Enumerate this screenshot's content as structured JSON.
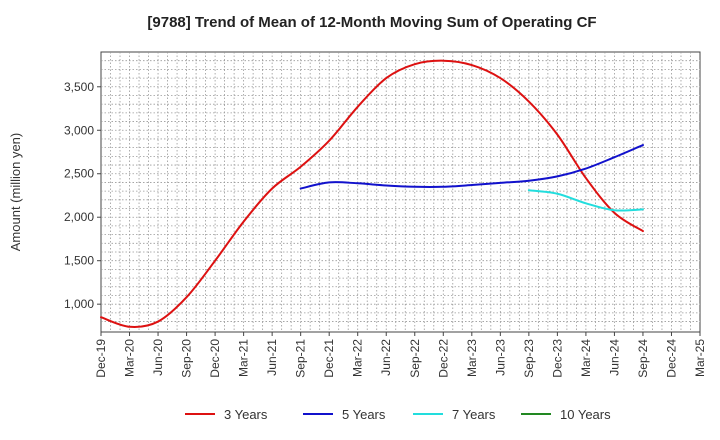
{
  "chart_data": {
    "type": "line",
    "title": "[9788]  Trend of Mean of 12-Month Moving Sum of Operating CF",
    "xlabel": "",
    "ylabel": "Amount (million yen)",
    "ylim": [
      680,
      3900
    ],
    "yticks": [
      1000,
      1500,
      2000,
      2500,
      3000,
      3500
    ],
    "ytick_labels": [
      "1,000",
      "1,500",
      "2,000",
      "2,500",
      "3,000",
      "3,500"
    ],
    "x_categories": [
      "Dec-19",
      "Mar-20",
      "Jun-20",
      "Sep-20",
      "Dec-20",
      "Mar-21",
      "Jun-21",
      "Sep-21",
      "Dec-21",
      "Mar-22",
      "Jun-22",
      "Sep-22",
      "Dec-22",
      "Mar-23",
      "Jun-23",
      "Sep-23",
      "Dec-23",
      "Mar-24",
      "Jun-24",
      "Sep-24",
      "Dec-24",
      "Mar-25"
    ],
    "grid": true,
    "legend_position": "bottom",
    "series": [
      {
        "name": "3 Years",
        "color": "#dd1111",
        "values": [
          850,
          740,
          800,
          1080,
          1500,
          1950,
          2330,
          2580,
          2880,
          3270,
          3600,
          3760,
          3800,
          3750,
          3600,
          3330,
          2950,
          2450,
          2050,
          1840,
          null,
          null
        ]
      },
      {
        "name": "5 Years",
        "color": "#1111cc",
        "values": [
          null,
          null,
          null,
          null,
          null,
          null,
          null,
          2330,
          2400,
          2390,
          2365,
          2350,
          2350,
          2370,
          2395,
          2420,
          2470,
          2560,
          2690,
          2830,
          null,
          null
        ]
      },
      {
        "name": "7 Years",
        "color": "#22dddd",
        "values": [
          null,
          null,
          null,
          null,
          null,
          null,
          null,
          null,
          null,
          null,
          null,
          null,
          null,
          null,
          null,
          2310,
          2270,
          2160,
          2080,
          2090,
          null,
          null
        ]
      },
      {
        "name": "10 Years",
        "color": "#228822",
        "values": [
          null,
          null,
          null,
          null,
          null,
          null,
          null,
          null,
          null,
          null,
          null,
          null,
          null,
          null,
          null,
          null,
          null,
          null,
          null,
          null,
          null,
          null
        ]
      }
    ]
  }
}
